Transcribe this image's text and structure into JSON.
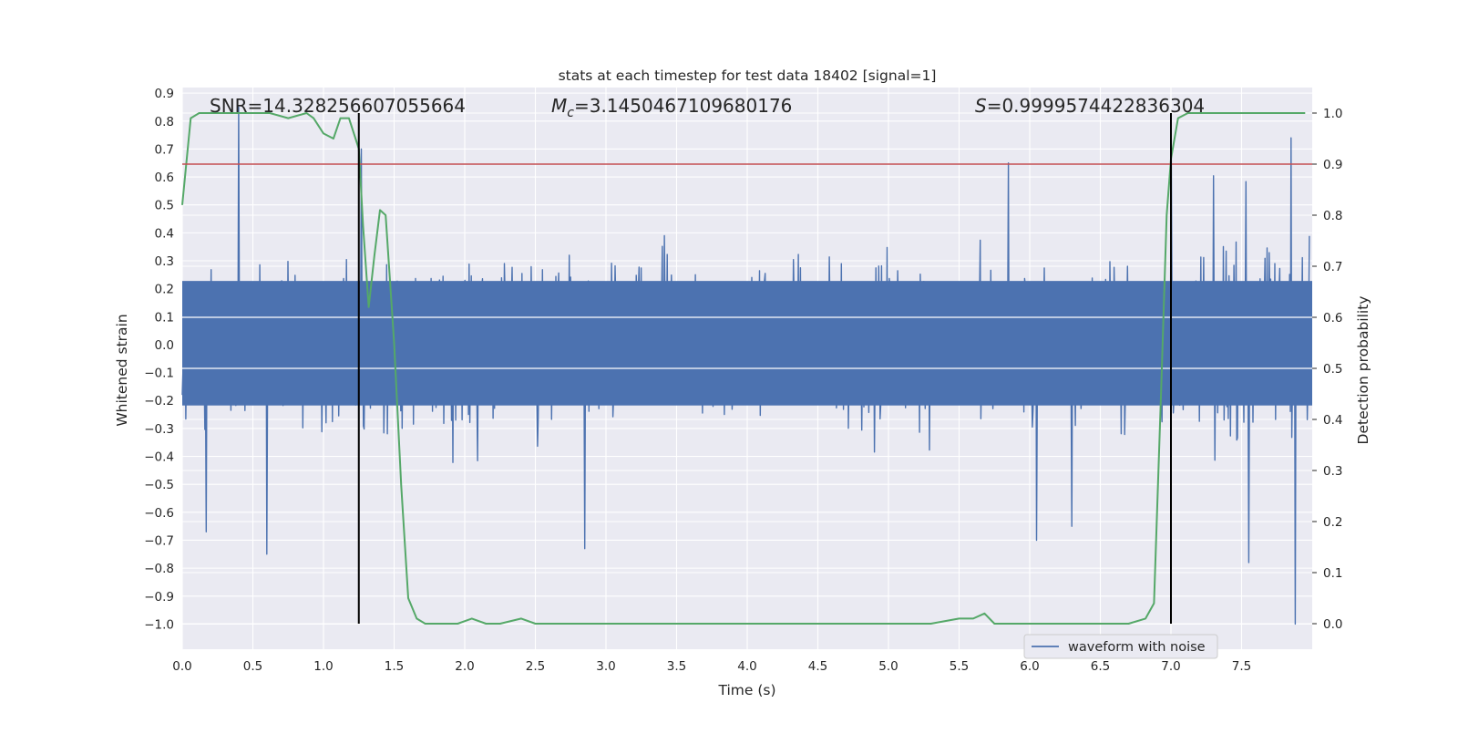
{
  "chart_data": {
    "type": "line",
    "title": "stats at each timestep for test data 18402 [signal=1]",
    "xlabel": "Time (s)",
    "ylabel": "Whitened strain",
    "ylabel_right": "Detection probability",
    "xlim": [
      0.0,
      8.0
    ],
    "ylim": [
      -1.09,
      0.92
    ],
    "ylim_right": [
      -0.05,
      1.05
    ],
    "xticks": [
      0.0,
      0.5,
      1.0,
      1.5,
      2.0,
      2.5,
      3.0,
      3.5,
      4.0,
      4.5,
      5.0,
      5.5,
      6.0,
      6.5,
      7.0,
      7.5
    ],
    "xtick_labels": [
      "0.0",
      "0.5",
      "1.0",
      "1.5",
      "2.0",
      "2.5",
      "3.0",
      "3.5",
      "4.0",
      "4.5",
      "5.0",
      "5.5",
      "6.0",
      "6.5",
      "7.0",
      "7.5"
    ],
    "yticks": [
      0.9,
      0.8,
      0.7,
      0.6,
      0.5,
      0.4,
      0.3,
      0.2,
      0.1,
      0.0,
      -0.1,
      -0.2,
      -0.3,
      -0.4,
      -0.5,
      -0.6,
      -0.7,
      -0.8,
      -0.9,
      -1.0
    ],
    "ytick_labels": [
      "0.9",
      "0.8",
      "0.7",
      "0.6",
      "0.5",
      "0.4",
      "0.3",
      "0.2",
      "0.1",
      "0.0",
      "−0.1",
      "−0.2",
      "−0.3",
      "−0.4",
      "−0.5",
      "−0.6",
      "−0.7",
      "−0.8",
      "−0.9",
      "−1.0"
    ],
    "yticks_right": [
      1.0,
      0.9,
      0.8,
      0.7,
      0.6,
      0.5,
      0.4,
      0.3,
      0.2,
      0.1,
      0.0
    ],
    "ytick_labels_right": [
      "1.0",
      "0.9",
      "0.8",
      "0.7",
      "0.6",
      "0.5",
      "0.4",
      "0.3",
      "0.2",
      "0.1",
      "0.0"
    ],
    "annotations": {
      "snr": "SNR=14.328256607055664",
      "mc_symbol": "M",
      "mc_subscript": "c",
      "mc_value": "=3.1450467109680176",
      "s_symbol": "S",
      "s_value": "=0.9999574422836304"
    },
    "vlines_x": [
      1.25,
      7.0
    ],
    "threshold": 0.9,
    "series": [
      {
        "name": "waveform with noise",
        "axis": "left",
        "color": "#4c72b0",
        "envelope_typical": [
          -0.27,
          0.28
        ],
        "peaks": [
          [
            0.4,
            0.85
          ],
          [
            0.6,
            -0.75
          ],
          [
            0.17,
            -0.67
          ],
          [
            1.27,
            0.7
          ],
          [
            2.85,
            -0.73
          ],
          [
            5.85,
            0.65
          ],
          [
            7.0,
            0.72
          ],
          [
            7.55,
            -0.78
          ],
          [
            7.85,
            0.74
          ],
          [
            7.88,
            -1.0
          ],
          [
            6.05,
            -0.7
          ],
          [
            6.3,
            -0.65
          ]
        ]
      },
      {
        "name": "detection probability",
        "axis": "right",
        "color": "#55a868",
        "x": [
          0.0,
          0.06,
          0.12,
          0.25,
          0.5,
          0.62,
          0.75,
          0.88,
          0.93,
          1.0,
          1.07,
          1.12,
          1.18,
          1.25,
          1.28,
          1.32,
          1.36,
          1.4,
          1.44,
          1.5,
          1.55,
          1.6,
          1.66,
          1.72,
          1.78,
          1.85,
          1.95,
          2.05,
          2.15,
          2.25,
          2.4,
          2.5,
          2.8,
          3.2,
          3.5,
          3.8,
          4.2,
          4.6,
          5.0,
          5.3,
          5.5,
          5.6,
          5.68,
          5.75,
          6.0,
          6.5,
          6.7,
          6.82,
          6.88,
          6.93,
          6.97,
          7.0,
          7.05,
          7.12,
          7.3,
          7.6,
          7.95
        ],
        "values": [
          0.82,
          0.99,
          1.0,
          1.0,
          1.0,
          1.0,
          0.99,
          1.0,
          0.99,
          0.96,
          0.95,
          0.99,
          0.99,
          0.93,
          0.78,
          0.62,
          0.72,
          0.81,
          0.8,
          0.55,
          0.27,
          0.05,
          0.01,
          0.0,
          0.0,
          0.0,
          0.0,
          0.01,
          0.0,
          0.0,
          0.01,
          0.0,
          0.0,
          0.0,
          0.0,
          0.0,
          0.0,
          0.0,
          0.0,
          0.0,
          0.01,
          0.01,
          0.02,
          0.0,
          0.0,
          0.0,
          0.0,
          0.01,
          0.04,
          0.45,
          0.8,
          0.91,
          0.99,
          1.0,
          1.0,
          1.0,
          1.0
        ]
      }
    ],
    "legend": {
      "label": "waveform with noise",
      "position": "lower-right"
    }
  },
  "colors": {
    "background": "#eaeaf2",
    "grid": "#ffffff",
    "waveform": "#4c72b0",
    "probability": "#55a868",
    "threshold": "#c44e52",
    "vline": "#000000"
  }
}
